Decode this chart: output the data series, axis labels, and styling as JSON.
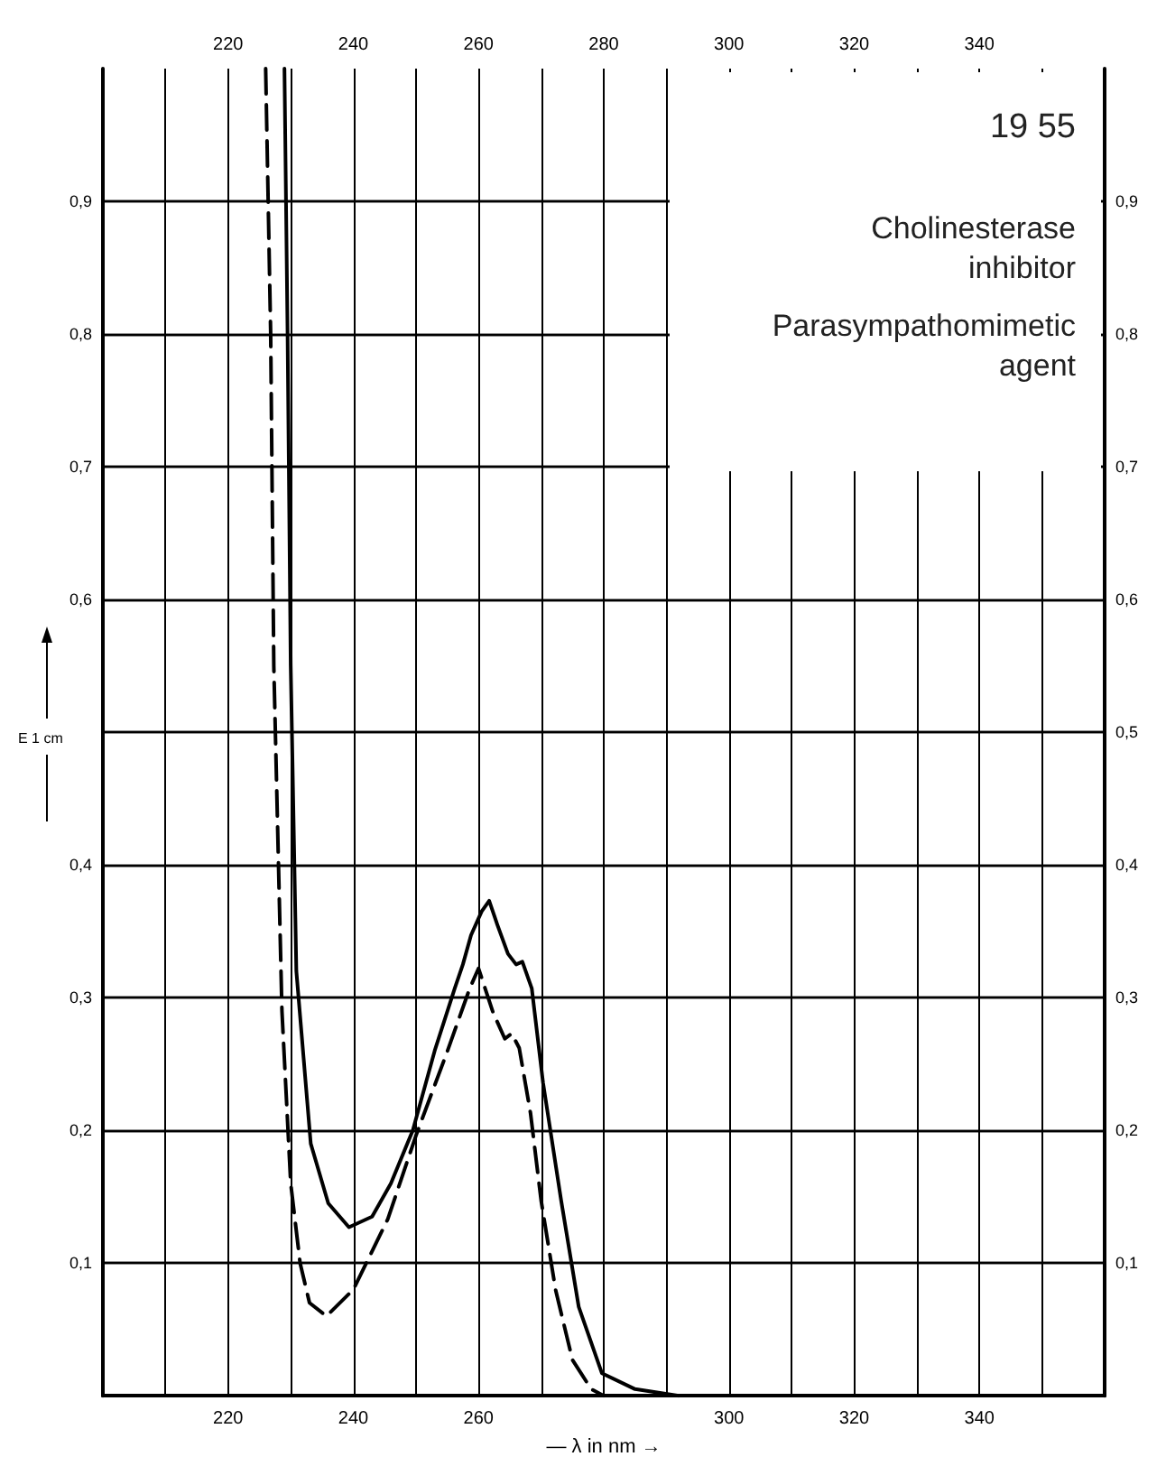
{
  "chart_data": {
    "type": "line",
    "xlabel": "— λ in nm →",
    "ylabel": "E 1 cm",
    "annotations": [
      "19 55",
      "Cholinesterase inhibitor",
      "Parasympathomimetic agent"
    ],
    "series": [
      {
        "color": "#000000",
        "line_style": "solid",
        "x": [
          229,
          229.5,
          230,
          230.9,
          233.2,
          236,
          239.3,
          243,
          246,
          249.5,
          253,
          256.2,
          257.5,
          258.8,
          260.5,
          261.7,
          263,
          264.7,
          266,
          267,
          268.5,
          270.3,
          273.2,
          276,
          279.7,
          285,
          292
        ],
        "values": [
          1.0,
          0.8,
          0.55,
          0.32,
          0.19,
          0.145,
          0.127,
          0.135,
          0.16,
          0.2,
          0.26,
          0.307,
          0.325,
          0.347,
          0.365,
          0.373,
          0.355,
          0.333,
          0.325,
          0.327,
          0.307,
          0.236,
          0.147,
          0.067,
          0.017,
          0.005,
          0
        ]
      },
      {
        "color": "#000000",
        "line_style": "dashed",
        "x": [
          226,
          226.8,
          227.3,
          228,
          228.6,
          230,
          231.5,
          233,
          235.7,
          240,
          245.5,
          250,
          254.9,
          258.6,
          260,
          262.3,
          264.2,
          265.3,
          266.5,
          268.3,
          270,
          272.3,
          275,
          278,
          280
        ],
        "values": [
          1.0,
          0.8,
          0.55,
          0.41,
          0.29,
          0.16,
          0.1,
          0.07,
          0.06,
          0.08,
          0.133,
          0.196,
          0.258,
          0.307,
          0.322,
          0.289,
          0.269,
          0.273,
          0.262,
          0.213,
          0.147,
          0.08,
          0.027,
          0.005,
          0
        ]
      }
    ],
    "xlim": [
      200,
      360
    ],
    "xticks": [
      {
        "value": 210,
        "label": null
      },
      220,
      {
        "value": 230,
        "label": null
      },
      240,
      {
        "value": 250,
        "label": null
      },
      260,
      {
        "value": 270,
        "label": null
      },
      {
        "value": 280,
        "label": null
      },
      {
        "value": 290,
        "label": null
      },
      300,
      {
        "value": 310,
        "label": null
      },
      320,
      {
        "value": 330,
        "label": null
      },
      340,
      {
        "value": 350,
        "label": null
      }
    ],
    "x2lim": [
      200,
      360
    ],
    "x2ticks": [
      {
        "value": 210,
        "label": null
      },
      220,
      {
        "value": 230,
        "label": null
      },
      240,
      {
        "value": 250,
        "label": null
      },
      260,
      {
        "value": 270,
        "label": null
      },
      280,
      {
        "value": 290,
        "label": null
      },
      300,
      {
        "value": 310,
        "label": null
      },
      320,
      {
        "value": 330,
        "label": null
      },
      340,
      {
        "value": 350,
        "label": null
      }
    ],
    "ylim": [
      0,
      1
    ],
    "yticks": [
      {
        "value": 0.1,
        "label": "0,1"
      },
      {
        "value": 0.2,
        "label": "0,2"
      },
      {
        "value": 0.3,
        "label": "0,3"
      },
      {
        "value": 0.4,
        "label": "0,4"
      },
      {
        "value": 0.5,
        "label": null
      },
      {
        "value": 0.6,
        "label": "0,6"
      },
      {
        "value": 0.7,
        "label": "0,7"
      },
      {
        "value": 0.8,
        "label": "0,8"
      },
      {
        "value": 0.9,
        "label": "0,9"
      }
    ],
    "y2lim": [
      0,
      1
    ],
    "y2ticks": [
      {
        "value": 0.1,
        "label": "0,1"
      },
      {
        "value": 0.2,
        "label": "0,2"
      },
      {
        "value": 0.3,
        "label": "0,3"
      },
      {
        "value": 0.4,
        "label": "0,4"
      },
      {
        "value": 0.5,
        "label": "0,5"
      },
      {
        "value": 0.6,
        "label": "0,6"
      },
      {
        "value": 0.7,
        "label": "0,7"
      },
      {
        "value": 0.8,
        "label": "0,8"
      },
      {
        "value": 0.9,
        "label": "0,9"
      }
    ],
    "grid": true,
    "marker": "none"
  }
}
